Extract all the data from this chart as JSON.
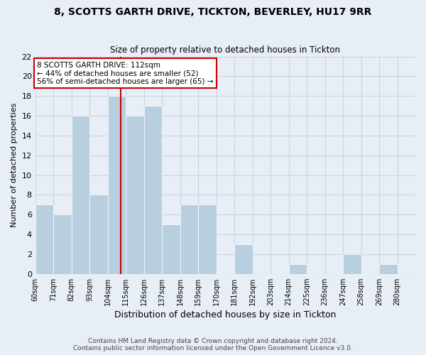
{
  "title": "8, SCOTTS GARTH DRIVE, TICKTON, BEVERLEY, HU17 9RR",
  "subtitle": "Size of property relative to detached houses in Tickton",
  "xlabel": "Distribution of detached houses by size in Tickton",
  "ylabel": "Number of detached properties",
  "footer_line1": "Contains HM Land Registry data © Crown copyright and database right 2024.",
  "footer_line2": "Contains public sector information licensed under the Open Government Licence v3.0.",
  "bin_edges": [
    60,
    71,
    82,
    93,
    104,
    115,
    126,
    137,
    148,
    159,
    170,
    181,
    192,
    203,
    214,
    225,
    236,
    247,
    258,
    269,
    280
  ],
  "bin_labels": [
    "60sqm",
    "71sqm",
    "82sqm",
    "93sqm",
    "104sqm",
    "115sqm",
    "126sqm",
    "137sqm",
    "148sqm",
    "159sqm",
    "170sqm",
    "181sqm",
    "192sqm",
    "203sqm",
    "214sqm",
    "225sqm",
    "236sqm",
    "247sqm",
    "258sqm",
    "269sqm",
    "280sqm"
  ],
  "values": [
    7,
    6,
    16,
    8,
    18,
    16,
    17,
    5,
    7,
    7,
    0,
    3,
    0,
    0,
    1,
    0,
    0,
    2,
    0,
    1,
    0
  ],
  "bar_color": "#b8cfe0",
  "bar_edge_color": "#b8cfe0",
  "property_line_color": "#cc0000",
  "annotation_box_color": "#cc0000",
  "grid_color": "#c8d4e4",
  "background_color": "#e8eef6",
  "ylim": [
    0,
    22
  ],
  "yticks": [
    0,
    2,
    4,
    6,
    8,
    10,
    12,
    14,
    16,
    18,
    20,
    22
  ],
  "property_sqm": 112,
  "annotation_line1": "8 SCOTTS GARTH DRIVE: 112sqm",
  "annotation_line2": "← 44% of detached houses are smaller (52)",
  "annotation_line3": "56% of semi-detached houses are larger (65) →"
}
